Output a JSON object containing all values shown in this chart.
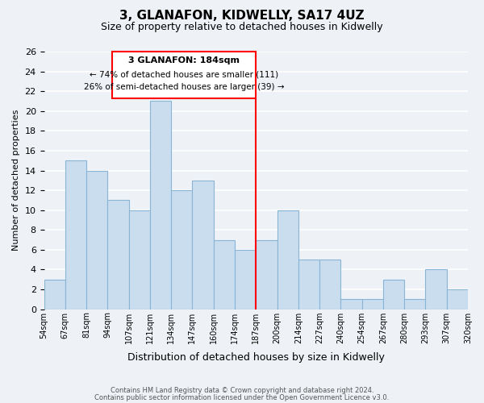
{
  "categories": [
    "54sqm",
    "67sqm",
    "81sqm",
    "94sqm",
    "107sqm",
    "121sqm",
    "134sqm",
    "147sqm",
    "160sqm",
    "174sqm",
    "187sqm",
    "200sqm",
    "214sqm",
    "227sqm",
    "240sqm",
    "254sqm",
    "267sqm",
    "280sqm",
    "293sqm",
    "307sqm",
    "320sqm"
  ],
  "values": [
    3,
    15,
    14,
    11,
    10,
    21,
    12,
    13,
    7,
    6,
    7,
    10,
    5,
    5,
    1,
    1,
    3,
    1,
    4,
    2
  ],
  "bar_color": "#c9ddef",
  "bar_edge_color": "#8ab4d4",
  "title": "3, GLANAFON, KIDWELLY, SA17 4UZ",
  "subtitle": "Size of property relative to detached houses in Kidwelly",
  "xlabel": "Distribution of detached houses by size in Kidwelly",
  "ylabel": "Number of detached properties",
  "ylim": [
    0,
    26
  ],
  "yticks": [
    0,
    2,
    4,
    6,
    8,
    10,
    12,
    14,
    16,
    18,
    20,
    22,
    24,
    26
  ],
  "red_line_x": 10,
  "annotation_title": "3 GLANAFON: 184sqm",
  "annotation_line1": "← 74% of detached houses are smaller (111)",
  "annotation_line2": "26% of semi-detached houses are larger (39) →",
  "footer1": "Contains HM Land Registry data © Crown copyright and database right 2024.",
  "footer2": "Contains public sector information licensed under the Open Government Licence v3.0.",
  "background_color": "#eef2f7",
  "grid_color": "#ffffff"
}
